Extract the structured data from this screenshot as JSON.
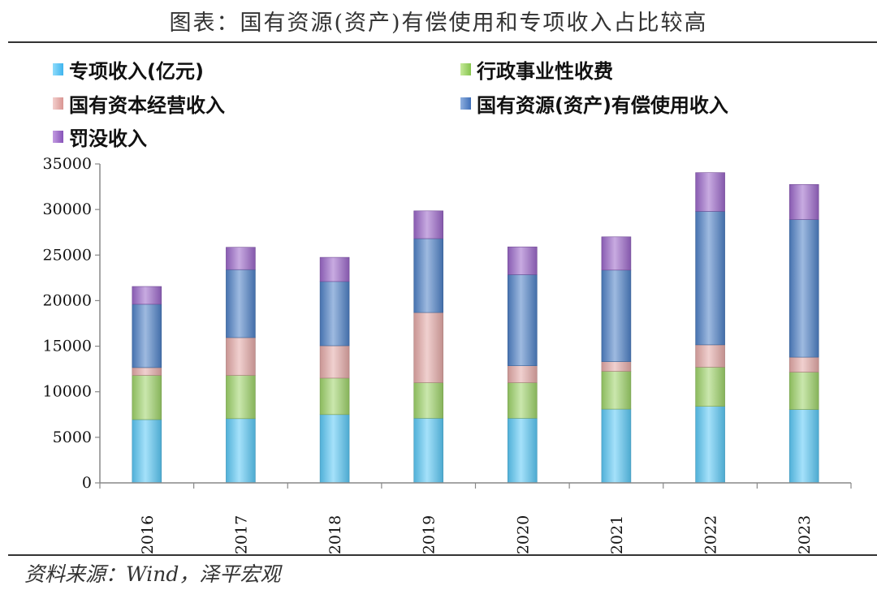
{
  "title": "图表：国有资源(资产)有偿使用和专项收入占比较高",
  "source": "资料来源：Wind，泽平宏观",
  "colors": {
    "special": "#5BC8F5",
    "admin": "#9ED36A",
    "capital": "#E4A9A7",
    "resource": "#4F81C7",
    "fine": "#9B67C9",
    "axis": "#888888"
  },
  "legend": {
    "special": "专项收入(亿元)",
    "admin": "行政事业性收费",
    "capital": "国有资本经营收入",
    "resource": "国有资源(资产)有偿使用收入",
    "fine": "罚没收入"
  },
  "chart_data": {
    "type": "bar",
    "stacked": true,
    "categories": [
      "2016",
      "2017",
      "2018",
      "2019",
      "2020",
      "2021",
      "2022",
      "2023"
    ],
    "series": [
      {
        "name": "专项收入(亿元)",
        "key": "special",
        "values": [
          6950,
          7050,
          7500,
          7100,
          7100,
          8100,
          8400,
          8050
        ]
      },
      {
        "name": "行政事业性收费",
        "key": "admin",
        "values": [
          4850,
          4750,
          4000,
          3900,
          3900,
          4150,
          4300,
          4100
        ]
      },
      {
        "name": "国有资本经营收入",
        "key": "capital",
        "values": [
          850,
          4150,
          3550,
          7700,
          1850,
          1050,
          2450,
          1650
        ]
      },
      {
        "name": "国有资源(资产)有偿使用收入",
        "key": "resource",
        "values": [
          6950,
          7450,
          7050,
          8100,
          10000,
          10050,
          14650,
          15100
        ]
      },
      {
        "name": "罚没收入",
        "key": "fine",
        "values": [
          1950,
          2450,
          2650,
          3050,
          3050,
          3650,
          4250,
          3850
        ]
      }
    ],
    "ylim": [
      0,
      35000
    ],
    "yticks": [
      0,
      5000,
      10000,
      15000,
      20000,
      25000,
      30000,
      35000
    ],
    "xlabel": "",
    "ylabel": "",
    "grid": false,
    "legend_position": "top"
  }
}
